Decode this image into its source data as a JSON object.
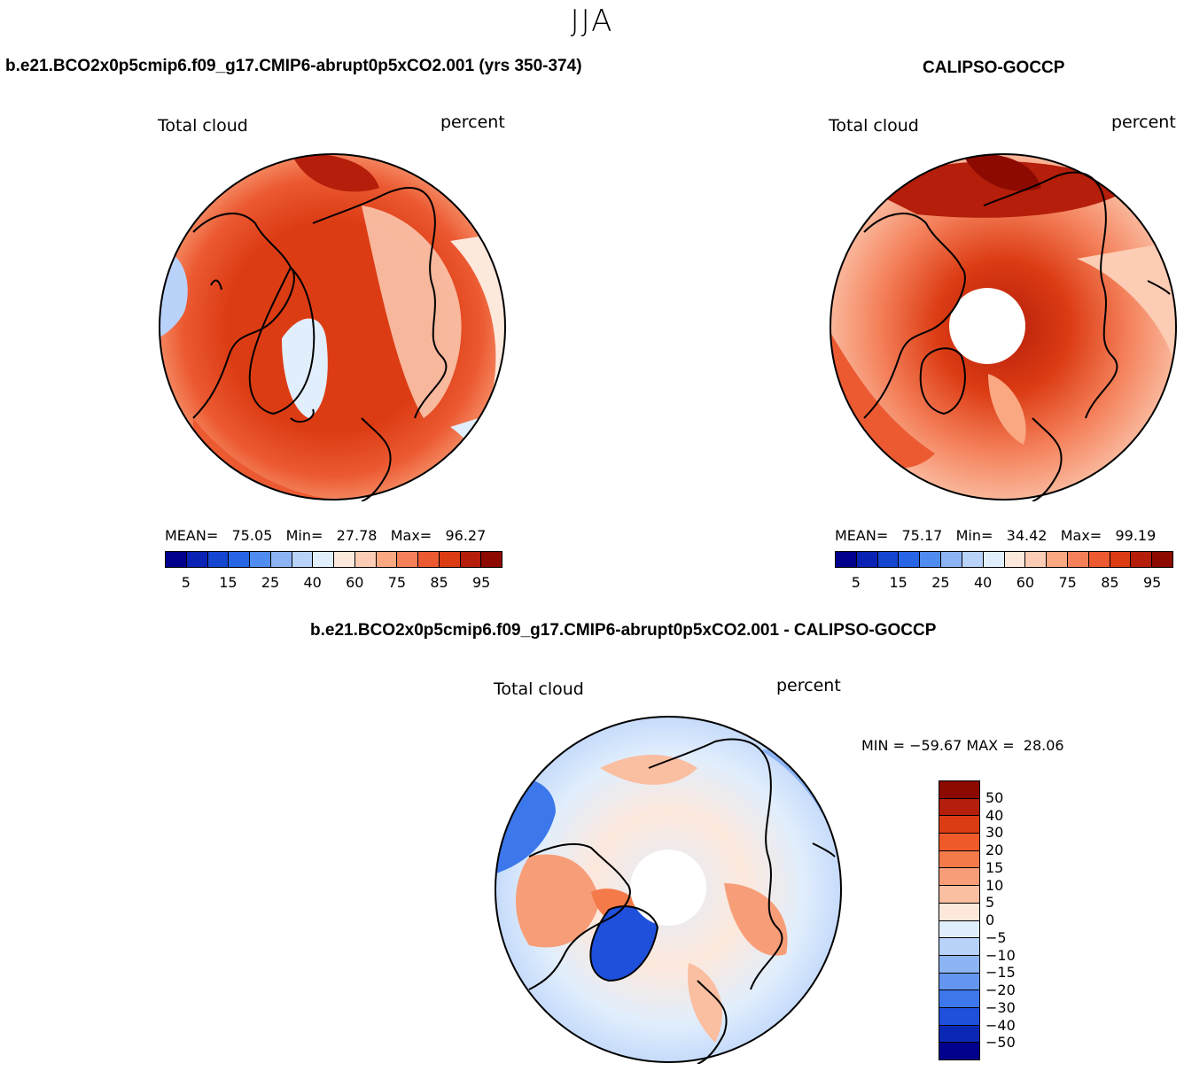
{
  "title": "JJA",
  "panels": {
    "model": {
      "title": "b.e21.BCO2x0p5cmip6.f09_g17.CMIP6-abrupt0p5xCO2.001 (yrs 350-374)",
      "variable": "Total cloud",
      "units": "percent",
      "stats": {
        "mean_label": "MEAN=",
        "mean": "75.05",
        "min_label": "Min=",
        "min": "27.78",
        "max_label": "Max=",
        "max": "96.27"
      }
    },
    "obs": {
      "title": "CALIPSO-GOCCP",
      "variable": "Total cloud",
      "units": "percent",
      "stats": {
        "mean_label": "MEAN=",
        "mean": "75.17",
        "min_label": "Min=",
        "min": "34.42",
        "max_label": "Max=",
        "max": "99.19"
      }
    },
    "diff": {
      "title": "b.e21.BCO2x0p5cmip6.f09_g17.CMIP6-abrupt0p5xCO2.001 - CALIPSO-GOCCP",
      "variable": "Total cloud",
      "units": "percent",
      "stats": {
        "min_label": "MIN =",
        "min": "−59.67",
        "max_label": "MAX =",
        "max": "28.06"
      }
    }
  },
  "colorbar_abs": {
    "tick_labels": [
      "5",
      "15",
      "25",
      "40",
      "60",
      "75",
      "85",
      "95"
    ],
    "colors": [
      "#00008c",
      "#0a23b4",
      "#1446d2",
      "#2864e6",
      "#508cf0",
      "#8cb4f5",
      "#b9d2fa",
      "#e1eefc",
      "#fde8dc",
      "#fcccb4",
      "#f9a882",
      "#f4805a",
      "#ec5a32",
      "#dc3c14",
      "#b41e0a",
      "#8c0a00"
    ]
  },
  "colorbar_diff": {
    "tick_labels": [
      "50",
      "40",
      "30",
      "20",
      "15",
      "10",
      "5",
      "0",
      "−5",
      "−10",
      "−15",
      "−20",
      "−30",
      "−40",
      "−50"
    ],
    "colors": [
      "#8c0a00",
      "#b41e0a",
      "#dc3c14",
      "#f05a28",
      "#f47a4a",
      "#f79e78",
      "#fabea0",
      "#fde8dc",
      "#e1eefc",
      "#b9d2fa",
      "#8cb4f5",
      "#6496f0",
      "#3c78eb",
      "#1e50dc",
      "#0a28b4",
      "#00008c"
    ]
  }
}
